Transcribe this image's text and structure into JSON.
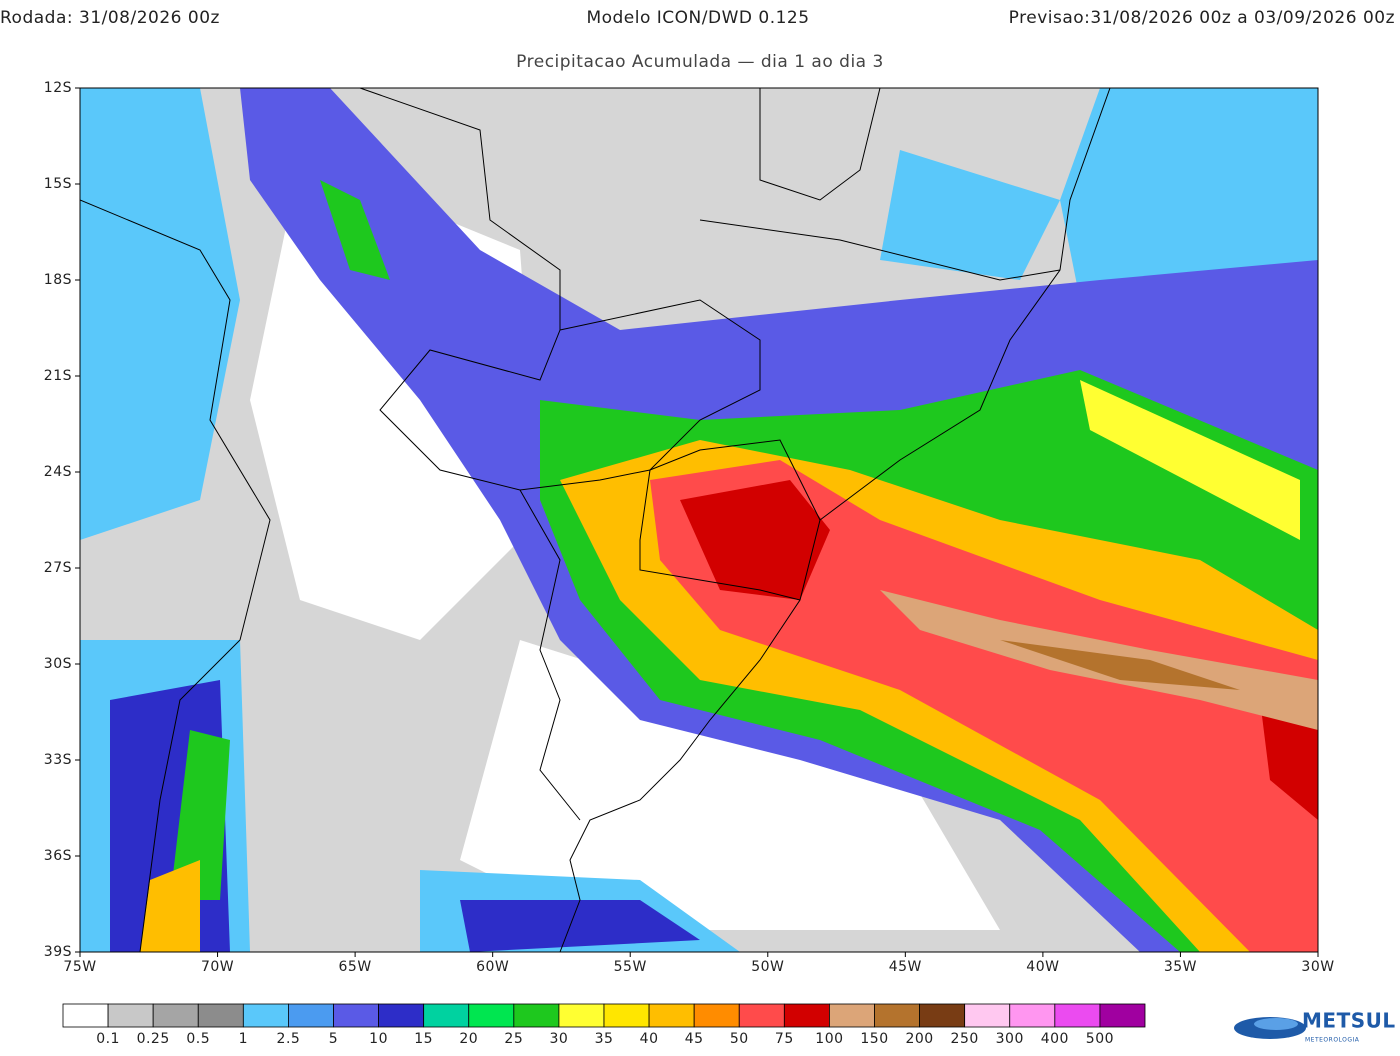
{
  "header": {
    "run": "Rodada: 31/08/2026 00z",
    "model": "Modelo ICON/DWD 0.125",
    "forecast": "Previsao:31/08/2026 00z a 03/09/2026 00z",
    "subtitle": "Precipitacao Acumulada — dia 1 ao dia 3"
  },
  "map": {
    "lat_labels": [
      "12S",
      "15S",
      "18S",
      "21S",
      "24S",
      "27S",
      "30S",
      "33S",
      "36S",
      "39S"
    ],
    "lon_labels": [
      "75W",
      "70W",
      "65W",
      "60W",
      "55W",
      "50W",
      "45W",
      "40W",
      "35W",
      "30W"
    ]
  },
  "colorbar": {
    "labels": [
      "0.1",
      "0.25",
      "0.5",
      "1",
      "2.5",
      "5",
      "10",
      "15",
      "20",
      "25",
      "30",
      "35",
      "40",
      "45",
      "50",
      "75",
      "100",
      "150",
      "200",
      "250",
      "300",
      "400",
      "500"
    ],
    "colors": [
      "#ffffff",
      "#c8c8c8",
      "#a5a5a5",
      "#8c8c8c",
      "#5ac8fa",
      "#4b9bf0",
      "#5a5ae6",
      "#2d2dc8",
      "#00d2a0",
      "#00e650",
      "#1ec81e",
      "#ffff32",
      "#ffe600",
      "#ffbe00",
      "#ff8c00",
      "#ff4b4b",
      "#d20000",
      "#dca578",
      "#b4732d",
      "#783c14",
      "#ffc8f0",
      "#ff96f0",
      "#eb4bf0",
      "#a000a0"
    ]
  },
  "logo": {
    "name": "METSUL",
    "tagline": "METEOROLOGIA"
  }
}
